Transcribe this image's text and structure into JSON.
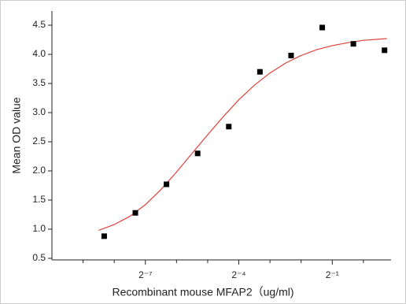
{
  "chart_data": {
    "type": "scatter",
    "x_label": "Recombinant mouse MFAP2（ug/ml)",
    "y_label": "Mean OD value",
    "xscale": "log2",
    "x": [
      0.003125,
      0.00625,
      0.0125,
      0.025,
      0.05,
      0.1,
      0.2,
      0.4,
      0.8,
      1.6
    ],
    "values": [
      0.88,
      1.28,
      1.77,
      2.3,
      2.76,
      3.7,
      3.98,
      4.46,
      4.18,
      4.07
    ],
    "color": "#000000",
    "curve": {
      "color": "#e0403a",
      "x": [
        0.00276,
        0.00390625,
        0.005524,
        0.0078125,
        0.011049,
        0.015625,
        0.022097,
        0.03125,
        0.044194,
        0.0625,
        0.088388,
        0.125,
        0.176777,
        0.25,
        0.353553,
        0.5,
        0.707107,
        1,
        1.681793
      ],
      "values": [
        0.98,
        1.08,
        1.22,
        1.42,
        1.68,
        1.98,
        2.3,
        2.62,
        2.93,
        3.22,
        3.47,
        3.68,
        3.85,
        3.98,
        4.08,
        4.15,
        4.2,
        4.24,
        4.27
      ]
    },
    "xlim": [
      0.0009765625,
      1.85
    ],
    "xticks": [
      {
        "value": 0.0078125,
        "label": "2⁻⁷"
      },
      {
        "value": 0.0625,
        "label": "2⁻⁴"
      },
      {
        "value": 0.5,
        "label": "2⁻¹"
      }
    ],
    "xminor_ticks": [
      0.001953125,
      0.00390625,
      0.015625,
      0.03125,
      0.125,
      0.25,
      1
    ],
    "ylim": [
      0.5,
      4.5
    ],
    "yticks": [
      {
        "value": 0.5,
        "label": "0.5"
      },
      {
        "value": 1.0,
        "label": "1.0"
      },
      {
        "value": 1.5,
        "label": "1.5"
      },
      {
        "value": 2.0,
        "label": "2.0"
      },
      {
        "value": 2.5,
        "label": "2.5"
      },
      {
        "value": 3.0,
        "label": "3.0"
      },
      {
        "value": 3.5,
        "label": "3.5"
      },
      {
        "value": 4.0,
        "label": "4.0"
      },
      {
        "value": 4.5,
        "label": "4.5"
      }
    ]
  }
}
